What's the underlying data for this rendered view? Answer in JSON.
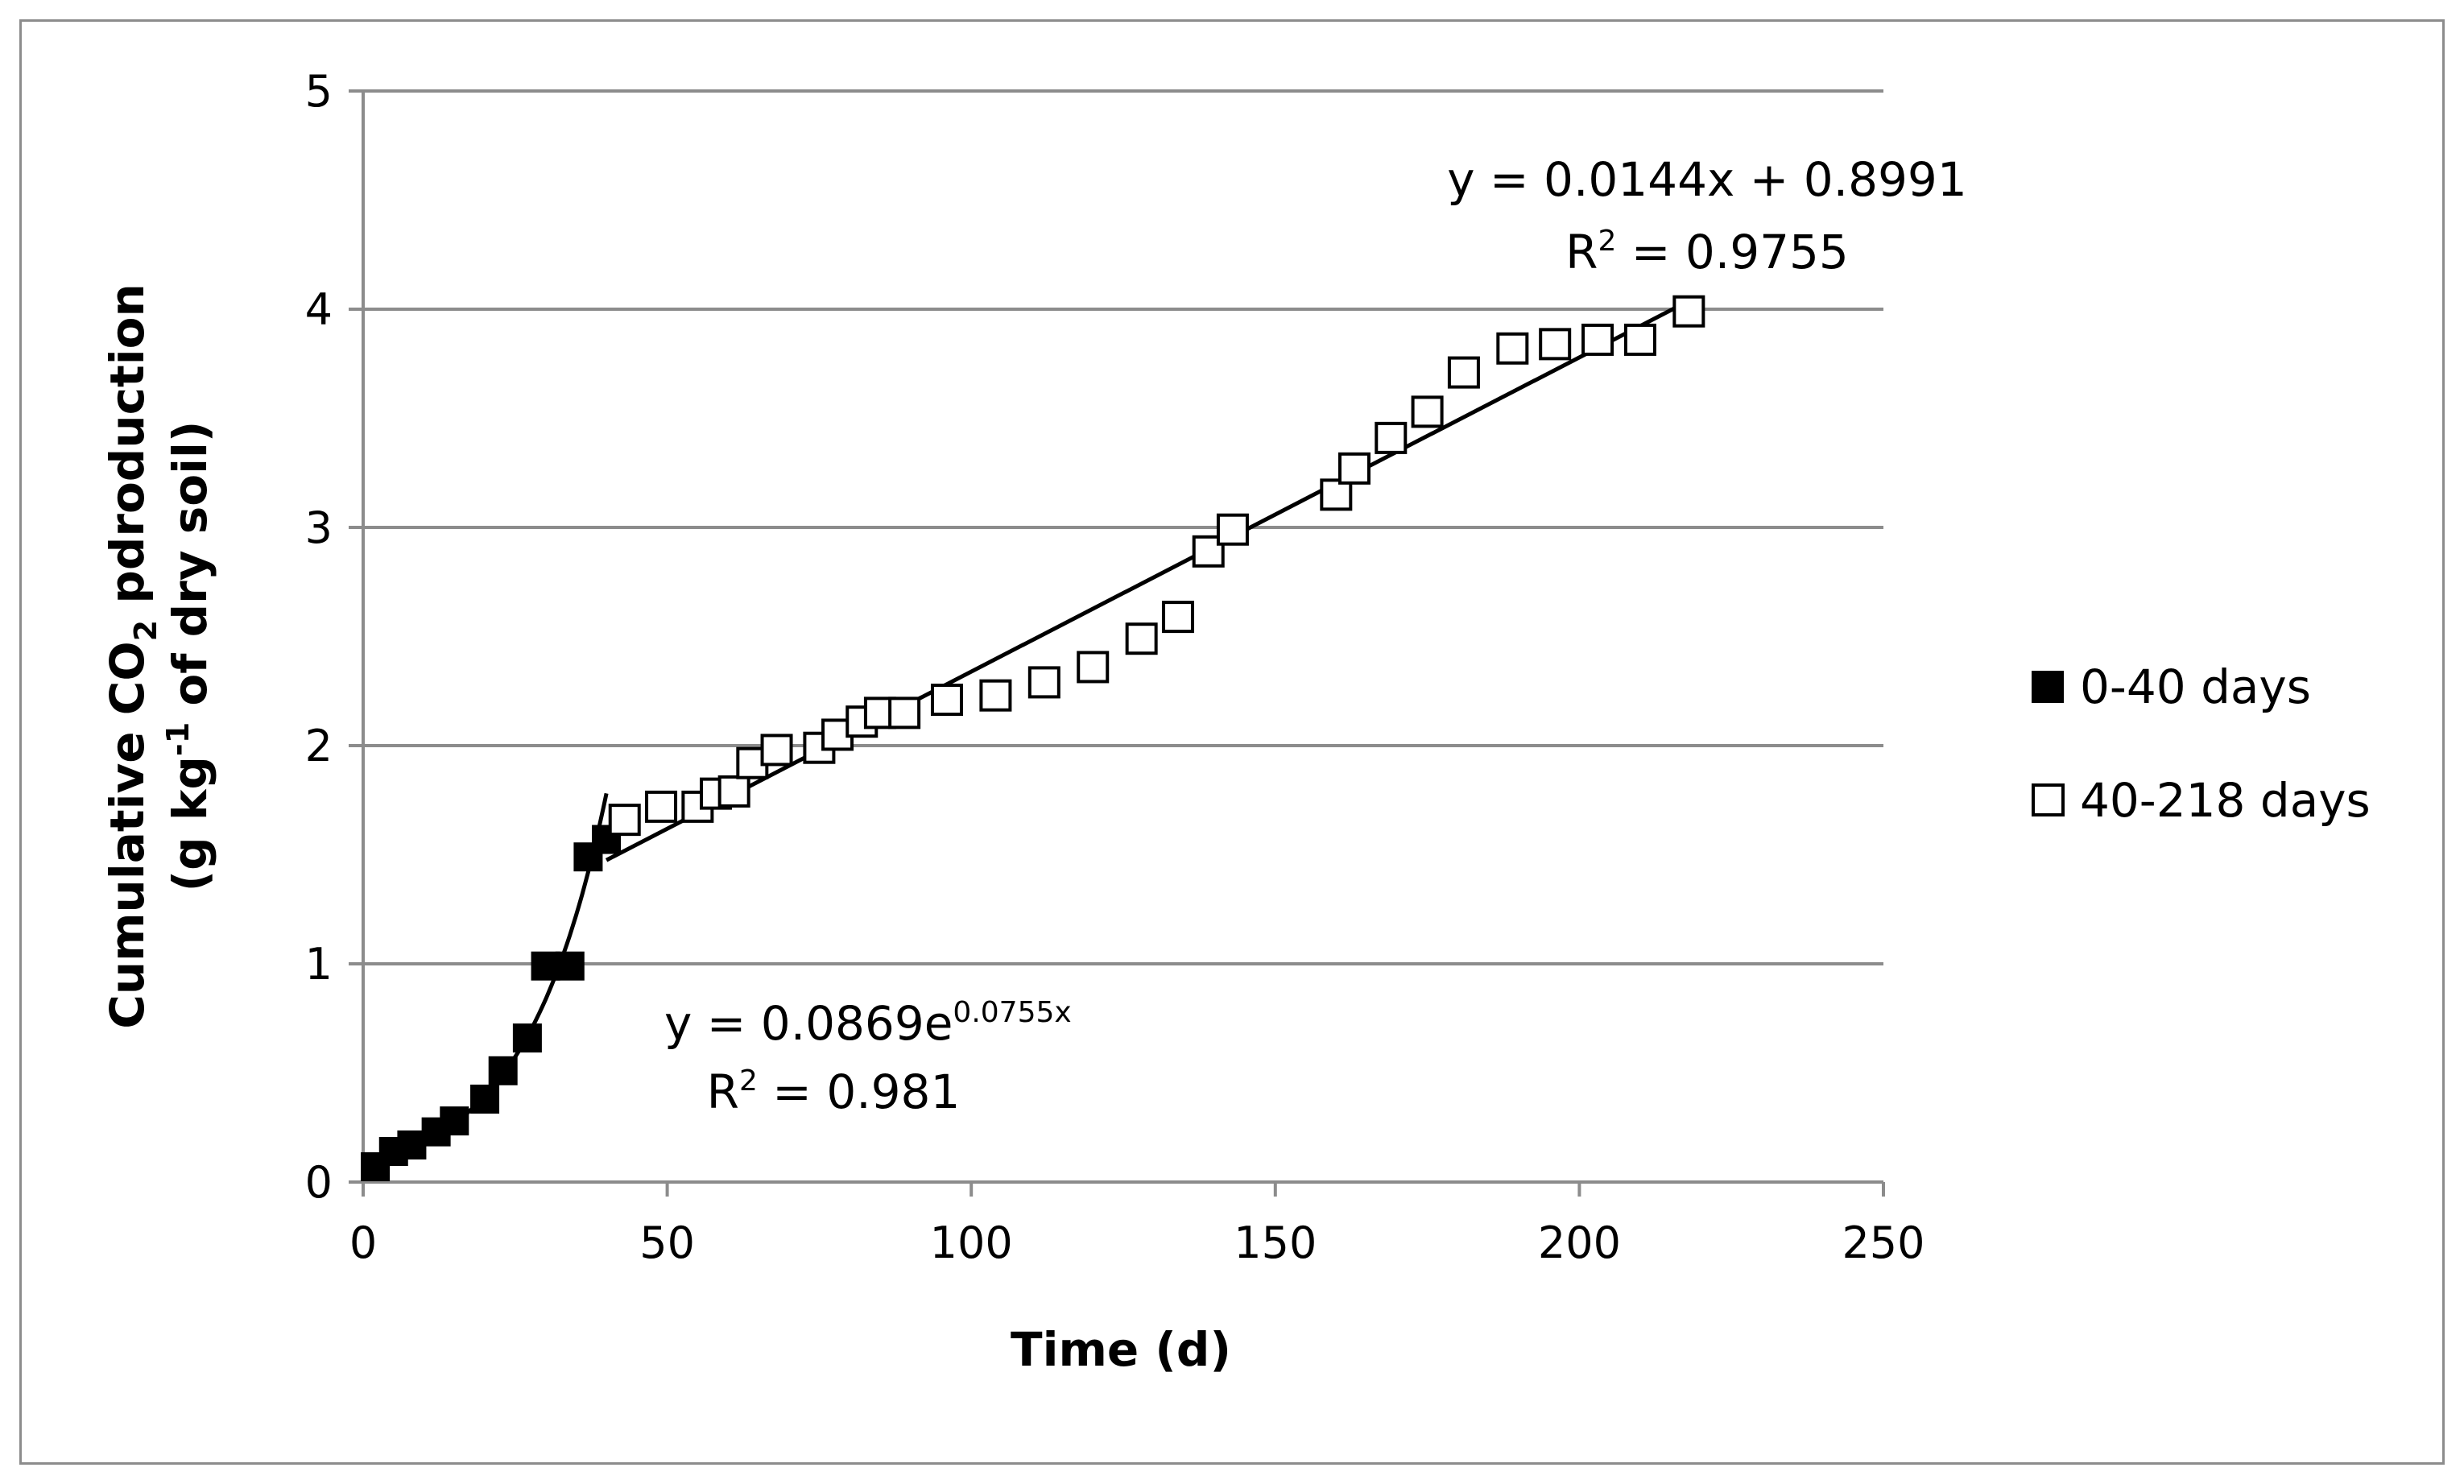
{
  "chart_data": {
    "type": "scatter",
    "title": "",
    "xlabel": "Time (d)",
    "ylabel": {
      "line1_a": "Cumulative CO",
      "line1_sub": "2",
      "line1_b": " pdroduction",
      "line2_a": "(g kg",
      "line2_sup": "-1",
      "line2_b": " of dry soil)"
    },
    "xlim": [
      0,
      250
    ],
    "ylim": [
      0,
      5
    ],
    "xticks": [
      "0",
      "50",
      "100",
      "150",
      "200",
      "250"
    ],
    "yticks": [
      "0",
      "1",
      "2",
      "3",
      "4",
      "5"
    ],
    "grid": "horizontal",
    "legend_position": "right",
    "series": [
      {
        "name": "0-40 days",
        "marker": "filled-square",
        "color": "#000000",
        "x": [
          2,
          5,
          8,
          12,
          15,
          20,
          23,
          27,
          30,
          34,
          37,
          40
        ],
        "y": [
          0.07,
          0.14,
          0.17,
          0.23,
          0.28,
          0.38,
          0.51,
          0.66,
          0.99,
          0.99,
          1.49,
          1.57
        ],
        "fit": {
          "type": "exponential",
          "a": 0.0869,
          "b": 0.0755,
          "x_range": [
            0,
            40
          ]
        }
      },
      {
        "name": "40-218 days",
        "marker": "open-square",
        "color": "#000000",
        "x": [
          43,
          49,
          55,
          58,
          61,
          64,
          68,
          75,
          78,
          82,
          85,
          89,
          96,
          104,
          112,
          120,
          128,
          134,
          139,
          143,
          160,
          163,
          169,
          175,
          181,
          189,
          196,
          203,
          210,
          218
        ],
        "y": [
          1.66,
          1.72,
          1.72,
          1.78,
          1.79,
          1.92,
          1.98,
          1.99,
          2.05,
          2.11,
          2.15,
          2.15,
          2.21,
          2.23,
          2.29,
          2.36,
          2.49,
          2.59,
          2.89,
          2.99,
          3.15,
          3.27,
          3.41,
          3.53,
          3.71,
          3.82,
          3.84,
          3.86,
          3.86,
          3.99
        ],
        "fit": {
          "type": "linear",
          "slope": 0.0144,
          "intercept": 0.8991,
          "x_range": [
            40,
            218
          ]
        }
      }
    ],
    "annotations": {
      "linear_eq": "y = 0.0144x + 0.8991",
      "linear_r2_a": "R",
      "linear_r2_sup": "2",
      "linear_r2_b": " = 0.9755",
      "exp_eq_a": "y = 0.0869e",
      "exp_eq_sup": "0.0755x",
      "exp_r2_a": "R",
      "exp_r2_sup": "2",
      "exp_r2_b": " = 0.981"
    }
  }
}
